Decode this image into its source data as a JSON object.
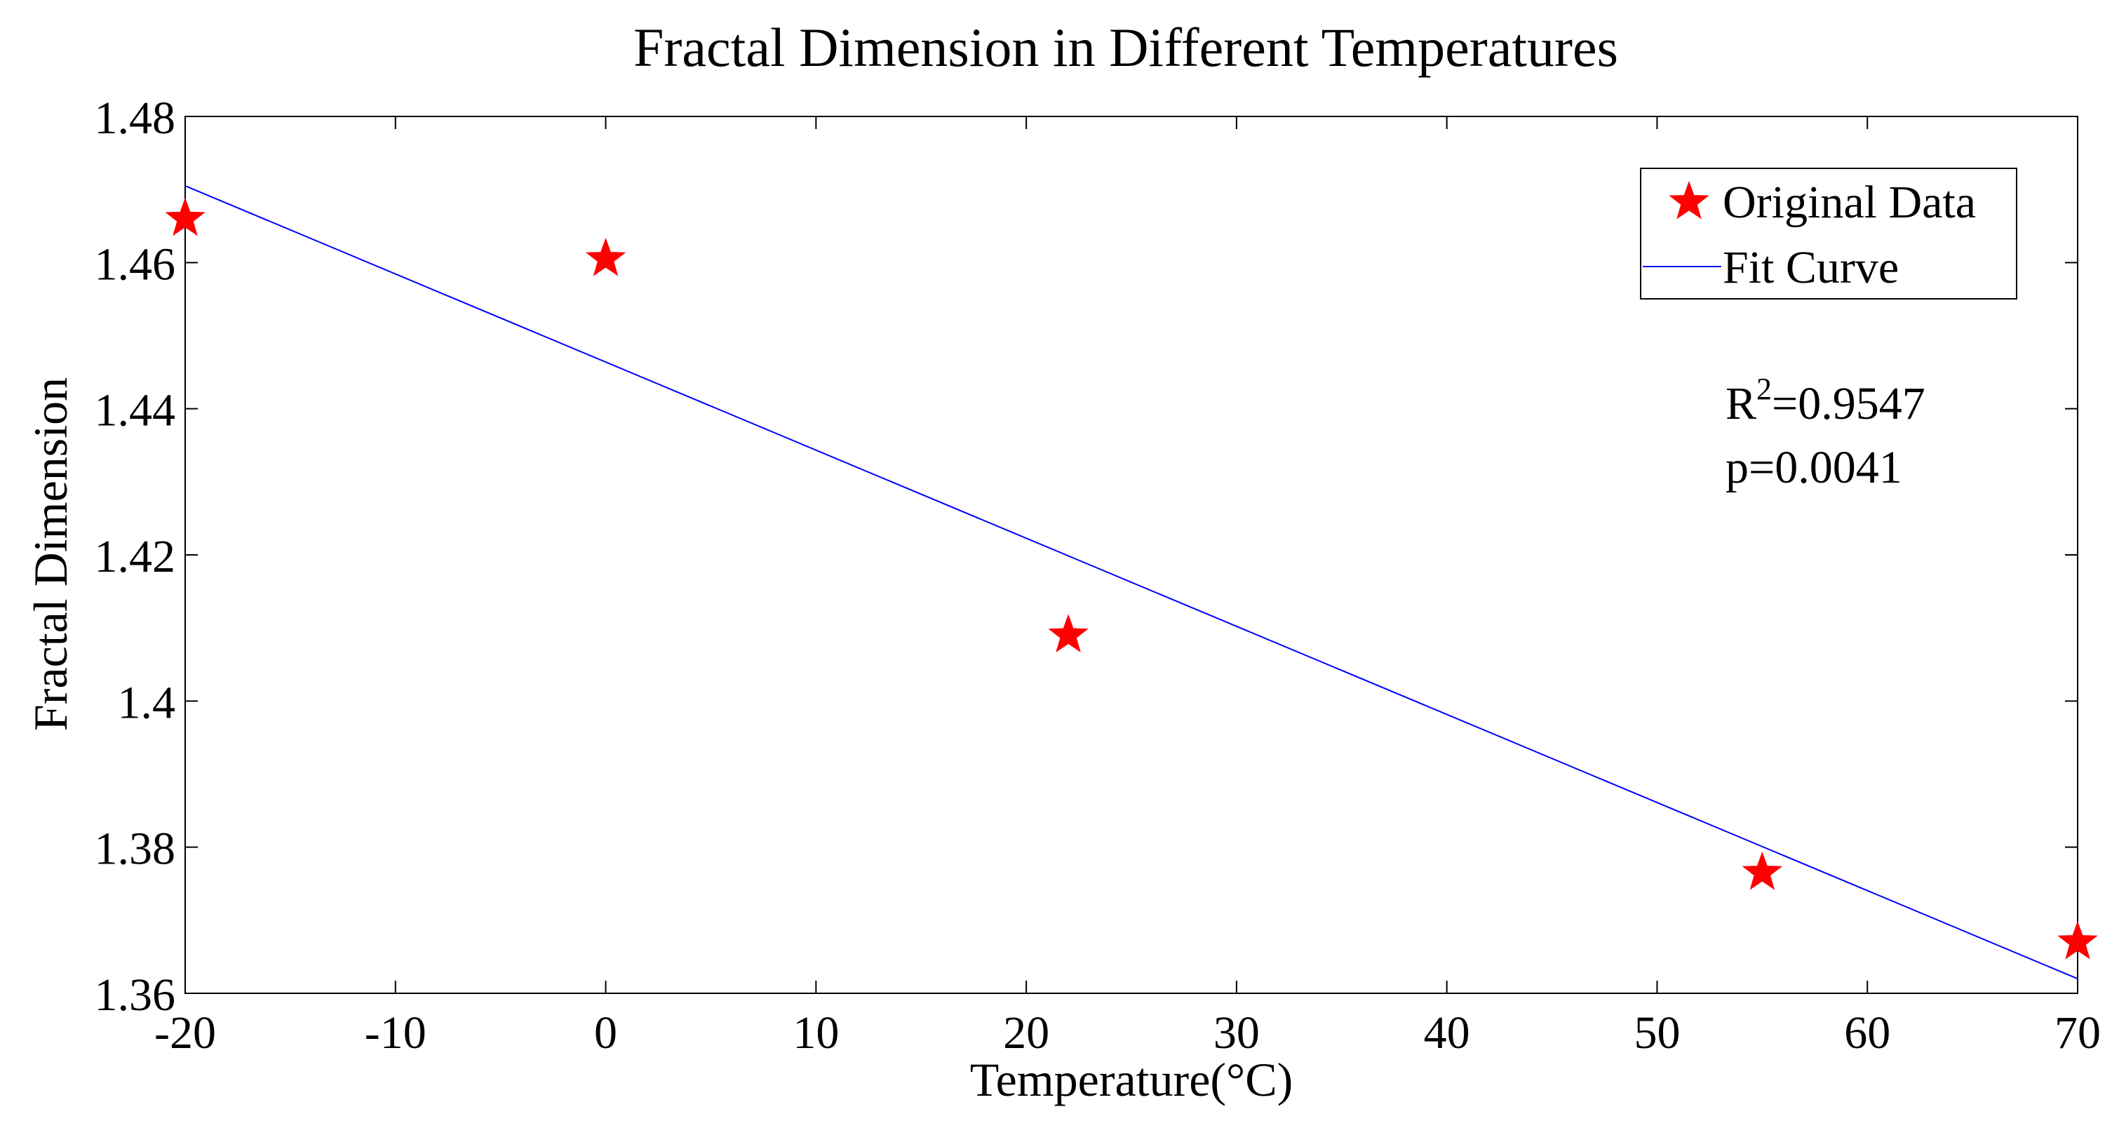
{
  "chart_data": {
    "type": "scatter",
    "title": "Fractal Dimension in Different Temperatures",
    "xlabel": "Temperature(°C)",
    "ylabel": "Fractal Dimension",
    "xlim": [
      -20,
      70
    ],
    "ylim": [
      1.36,
      1.48
    ],
    "xticks": [
      -20,
      -10,
      0,
      10,
      20,
      30,
      40,
      50,
      60,
      70
    ],
    "xtick_labels": [
      "-20",
      "-10",
      "0",
      "10",
      "20",
      "30",
      "40",
      "50",
      "60",
      "70"
    ],
    "yticks": [
      1.36,
      1.38,
      1.4,
      1.42,
      1.44,
      1.46,
      1.48
    ],
    "ytick_labels": [
      "1.36",
      "1.38",
      "1.4",
      "1.42",
      "1.44",
      "1.46",
      "1.48"
    ],
    "grid": false,
    "legend_position": "top-right",
    "series": [
      {
        "name": "Original Data",
        "kind": "scatter",
        "marker": "star",
        "color": "#ff0000",
        "points": [
          {
            "x": -20,
            "y": 1.466
          },
          {
            "x": 0,
            "y": 1.4605
          },
          {
            "x": 22,
            "y": 1.409
          },
          {
            "x": 55,
            "y": 1.3765
          },
          {
            "x": 70,
            "y": 1.367
          }
        ]
      },
      {
        "name": "Fit Curve",
        "kind": "line",
        "color": "#0000ff",
        "points": [
          {
            "x": -20,
            "y": 1.4705
          },
          {
            "x": 70,
            "y": 1.362
          }
        ]
      }
    ],
    "annotations": {
      "r2_base": "R",
      "r2_sup": "2",
      "r2_value": "=0.9547",
      "p_text": "p=0.0041"
    }
  }
}
